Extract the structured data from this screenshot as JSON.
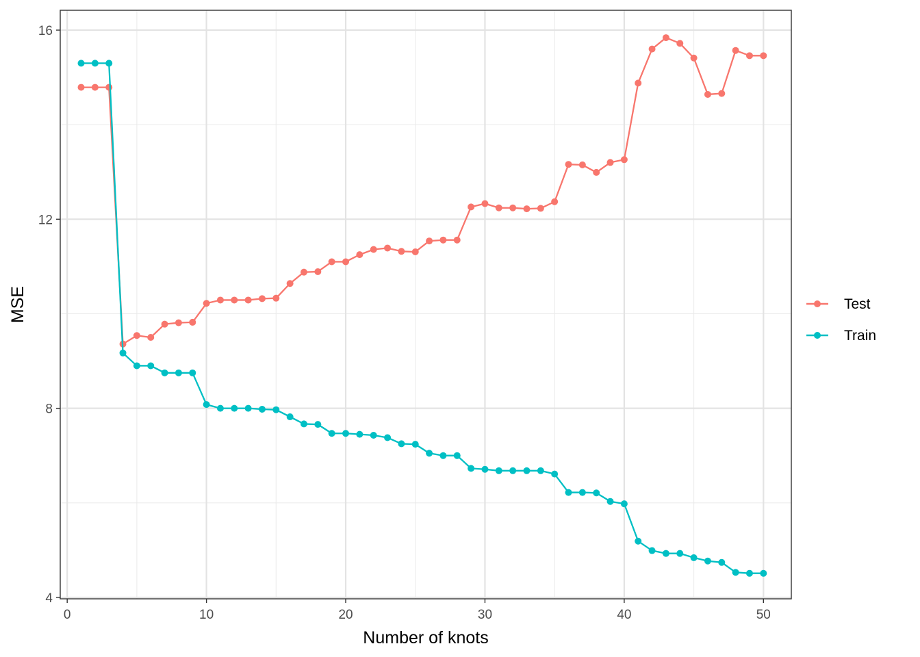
{
  "chart_data": {
    "type": "line",
    "title": "",
    "xlabel": "Number of knots",
    "ylabel": "MSE",
    "xlim": [
      -0.5,
      52
    ],
    "ylim": [
      3.97,
      16.42
    ],
    "x_ticks": [
      0,
      10,
      20,
      30,
      40,
      50
    ],
    "x_tick_labels": [
      "0",
      "10",
      "20",
      "30",
      "40",
      "50"
    ],
    "y_ticks": [
      4,
      8,
      12,
      16
    ],
    "y_tick_labels": [
      "4",
      "8",
      "12",
      "16"
    ],
    "y_minor_ticks": [
      6,
      10,
      14
    ],
    "x_minor_ticks": [
      5,
      15,
      25,
      35,
      45
    ],
    "grid": true,
    "legend_position": "right",
    "x": [
      1,
      2,
      3,
      4,
      5,
      6,
      7,
      8,
      9,
      10,
      11,
      12,
      13,
      14,
      15,
      16,
      17,
      18,
      19,
      20,
      21,
      22,
      23,
      24,
      25,
      26,
      27,
      28,
      29,
      30,
      31,
      32,
      33,
      34,
      35,
      36,
      37,
      38,
      39,
      40,
      41,
      42,
      43,
      44,
      45,
      46,
      47,
      48,
      49,
      50
    ],
    "series": [
      {
        "name": "Test",
        "color": "#F8766D",
        "values": [
          14.79,
          14.79,
          14.79,
          9.36,
          9.54,
          9.5,
          9.78,
          9.81,
          9.82,
          10.22,
          10.29,
          10.29,
          10.29,
          10.32,
          10.33,
          10.64,
          10.88,
          10.89,
          11.1,
          11.1,
          11.25,
          11.36,
          11.39,
          11.32,
          11.31,
          11.54,
          11.56,
          11.56,
          12.26,
          12.33,
          12.24,
          12.24,
          12.22,
          12.23,
          12.37,
          13.16,
          13.15,
          12.99,
          13.2,
          13.26,
          14.88,
          15.6,
          15.84,
          15.72,
          15.41,
          14.64,
          14.66,
          15.57,
          15.46,
          15.46
        ]
      },
      {
        "name": "Train",
        "color": "#00BFC4",
        "values": [
          15.3,
          15.3,
          15.3,
          9.17,
          8.9,
          8.9,
          8.75,
          8.75,
          8.75,
          8.08,
          8.0,
          8.0,
          8.0,
          7.98,
          7.97,
          7.82,
          7.67,
          7.66,
          7.47,
          7.47,
          7.45,
          7.43,
          7.38,
          7.25,
          7.24,
          7.05,
          7.0,
          7.0,
          6.73,
          6.71,
          6.68,
          6.68,
          6.68,
          6.68,
          6.61,
          6.22,
          6.22,
          6.21,
          6.03,
          5.98,
          5.19,
          4.99,
          4.93,
          4.93,
          4.84,
          4.77,
          4.74,
          4.53,
          4.51,
          4.51
        ]
      }
    ]
  }
}
